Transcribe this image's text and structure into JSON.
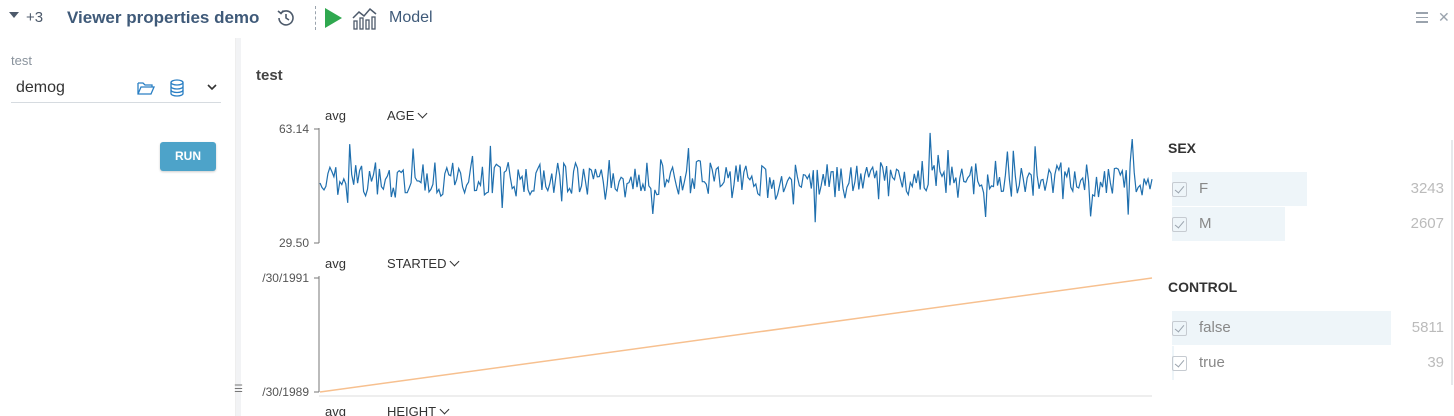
{
  "topbar": {
    "plus_count": "+3",
    "title": "Viewer properties demo",
    "model_label": "Model",
    "icons": [
      "chevron-down-icon",
      "history-icon",
      "play-icon",
      "model-chart-icon",
      "menu-icon",
      "close-icon"
    ]
  },
  "sidebar": {
    "param_label": "test",
    "param_value": "demog",
    "run_label": "RUN",
    "icons": [
      "folder-open-icon",
      "database-icon",
      "chevron-down-icon"
    ]
  },
  "content": {
    "title": "test"
  },
  "colors": {
    "age_line": "#1f6fae",
    "started_line": "#f7c08f",
    "run_button": "#4da3c9",
    "play_icon": "#2fa84f",
    "title": "#3f5a79"
  },
  "charts": {
    "age": {
      "agg": "avg",
      "column": "AGE",
      "y_max": "63.14",
      "y_min": "29.50"
    },
    "started": {
      "agg": "avg",
      "column": "STARTED",
      "y_max": "/30/1991",
      "y_min": "/30/1989"
    },
    "height": {
      "agg": "avg",
      "column": "HEIGHT"
    }
  },
  "chart_data": [
    {
      "type": "line",
      "series": [
        {
          "name": "AGE",
          "values": "noisy line oscillating around ~45, spikes up to 63.14 and down to 29.50"
        }
      ],
      "ylim": [
        29.5,
        63.14
      ],
      "ylabel": "avg",
      "xlabel": ""
    },
    {
      "type": "line",
      "series": [
        {
          "name": "STARTED",
          "values": "linear increase from /30/1989 to /30/1991"
        }
      ],
      "ylim": [
        "/30/1989",
        "/30/1991"
      ],
      "ylabel": "avg",
      "xlabel": ""
    }
  ],
  "filters": [
    {
      "title": "SEX",
      "items": [
        {
          "label": "F",
          "count": "3243",
          "share": 0.55
        },
        {
          "label": "M",
          "count": "2607",
          "share": 0.45
        }
      ]
    },
    {
      "title": "CONTROL",
      "items": [
        {
          "label": "false",
          "count": "5811",
          "share": 0.99
        },
        {
          "label": "true",
          "count": "39",
          "share": 0.01
        }
      ]
    }
  ]
}
